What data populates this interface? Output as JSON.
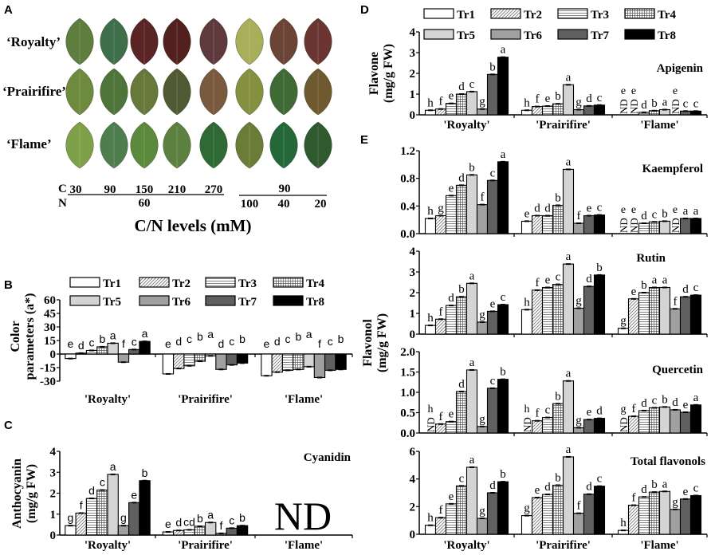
{
  "panel_a": {
    "letter": "A",
    "varieties": [
      "‘Royalty’",
      "‘Prairifire’",
      "‘Flame’"
    ],
    "leaf_colors": [
      [
        "#5f7d3e",
        "#3f6e4a",
        "#5a2426",
        "#52201f",
        "#5e3a3c",
        "#a8ae5a",
        "#6b4436",
        "#6a3530"
      ],
      [
        "#6e8a3c",
        "#4f7439",
        "#66793a",
        "#4f5a32",
        "#7a5a3e",
        "#859040",
        "#3f6a36",
        "#6e5a2e"
      ],
      [
        "#7da048",
        "#4f7e4e",
        "#5c8a3c",
        "#5b8040",
        "#2f6a34",
        "#6a7c36",
        "#24683a",
        "#2e5a2e"
      ]
    ],
    "c_label": "C",
    "n_label": "N",
    "c_values": [
      "30",
      "90",
      "150",
      "210",
      "270"
    ],
    "n_value": "60",
    "c_value_right": "90",
    "n_values_right": [
      "100",
      "40",
      "20"
    ],
    "axis_title": "C/N levels (mM)"
  },
  "legend": [
    "Tr1",
    "Tr2",
    "Tr3",
    "Tr4",
    "Tr5",
    "Tr6",
    "Tr7",
    "Tr8"
  ],
  "fills": [
    "#ffffff",
    "url(#p-diag)",
    "url(#p-horiz)",
    "url(#p-grid)",
    "#d4d4d4",
    "#a0a0a0",
    "#606060",
    "#000000"
  ],
  "groups": [
    "'Royalty'",
    "'Prairifire'",
    "'Flame'"
  ],
  "nd_label": "ND",
  "panels": {
    "B": {
      "letter": "B",
      "ylabel": [
        "Color",
        "parameters (a*)"
      ],
      "title": "",
      "ticks": [
        "60",
        "45",
        "30",
        "15",
        "0",
        "-15",
        "-30"
      ]
    },
    "C": {
      "letter": "C",
      "ylabel": [
        "Anthocyanin",
        "(mg/g FW)"
      ],
      "title": "Cyanidin",
      "ticks": [
        "4",
        "3",
        "2",
        "1",
        "0"
      ],
      "big_nd": "ND"
    },
    "D": {
      "letter": "D",
      "ylabel": [
        "Flavone",
        "(mg/g FW)"
      ],
      "title": "Apigenin",
      "ticks": [
        "4",
        "3",
        "2",
        "1",
        "0"
      ]
    },
    "E": {
      "letter": "E",
      "ylabel": [
        "Flavonol",
        "(mg/g FW)"
      ]
    },
    "K": {
      "title": "Kaempferol",
      "ticks": [
        "1.2",
        "0.8",
        "0.4",
        "0.0"
      ]
    },
    "R": {
      "title": "Rutin",
      "ticks": [
        "4",
        "3",
        "2",
        "1",
        "0"
      ]
    },
    "Q": {
      "title": "Quercetin",
      "ticks": [
        "2.0",
        "1.5",
        "1.0",
        "0.5",
        "0.0"
      ]
    },
    "T": {
      "title": "Total flavonols",
      "ticks": [
        "6",
        "4",
        "2",
        "0"
      ]
    }
  },
  "chart_data": [
    {
      "id": "B",
      "type": "bar",
      "title": "Color parameters (a*)",
      "ylabel": "Color parameters (a*)",
      "ylim": [
        -30,
        60
      ],
      "categories": [
        "'Royalty'",
        "'Prairifire'",
        "'Flame'"
      ],
      "series_names": [
        "Tr1",
        "Tr2",
        "Tr3",
        "Tr4",
        "Tr5",
        "Tr6",
        "Tr7",
        "Tr8"
      ],
      "values": [
        [
          -5,
          1,
          4,
          8,
          12,
          -9,
          5,
          14
        ],
        [
          -22,
          -16,
          -13,
          -8,
          -2,
          -17,
          -12,
          -10
        ],
        [
          -24,
          -20,
          -18,
          -17,
          -14,
          -26,
          -18,
          -17
        ]
      ],
      "letters": [
        [
          "e",
          "d",
          "c",
          "b",
          "a",
          "f",
          "c",
          "a"
        ],
        [
          "e",
          "d",
          "c",
          "b",
          "a",
          "d",
          "c",
          "b"
        ],
        [
          "e",
          "d",
          "c",
          "b",
          "a",
          "f",
          "c",
          "b"
        ]
      ]
    },
    {
      "id": "C",
      "type": "bar",
      "title": "Cyanidin",
      "ylabel": "Anthocyanin (mg/g FW)",
      "ylim": [
        0,
        4
      ],
      "categories": [
        "'Royalty'",
        "'Prairifire'",
        "'Flame'"
      ],
      "values": [
        [
          0.45,
          1.05,
          1.75,
          2.15,
          2.9,
          0.45,
          1.55,
          2.6
        ],
        [
          0.15,
          0.22,
          0.25,
          0.42,
          0.6,
          0.08,
          0.33,
          0.45
        ],
        null
      ],
      "letters": [
        [
          "g",
          "f",
          "d",
          "c",
          "a",
          "g",
          "e",
          "b"
        ],
        [
          "e",
          "d",
          "cd",
          "b",
          "a",
          "f",
          "c",
          "b"
        ],
        null
      ]
    },
    {
      "id": "D",
      "type": "bar",
      "title": "Apigenin",
      "ylabel": "Flavone (mg/g FW)",
      "ylim": [
        0,
        4
      ],
      "categories": [
        "'Royalty'",
        "'Prairifire'",
        "'Flame'"
      ],
      "values": [
        [
          0.22,
          0.28,
          0.55,
          1.0,
          1.12,
          0.28,
          1.95,
          2.78
        ],
        [
          0.22,
          0.4,
          0.42,
          0.53,
          1.45,
          0.25,
          0.43,
          0.47
        ],
        [
          null,
          null,
          0.12,
          0.2,
          0.25,
          null,
          0.18,
          0.18
        ]
      ],
      "letters": [
        [
          "h",
          "f",
          "e",
          "d",
          "c",
          "g",
          "b",
          "a"
        ],
        [
          "h",
          "f",
          "e",
          "b",
          "a",
          "g",
          "d",
          "c"
        ],
        [
          "e",
          "e",
          "d",
          "b",
          "a",
          "e",
          "c",
          "c"
        ]
      ]
    },
    {
      "id": "K",
      "type": "bar",
      "title": "Kaempferol",
      "ylabel": "Flavonol (mg/g FW)",
      "ylim": [
        0,
        1.2
      ],
      "categories": [
        "'Royalty'",
        "'Prairifire'",
        "'Flame'"
      ],
      "values": [
        [
          0.22,
          0.26,
          0.55,
          0.7,
          0.85,
          0.42,
          0.77,
          1.04
        ],
        [
          0.18,
          0.26,
          0.26,
          0.41,
          0.93,
          0.15,
          0.26,
          0.27
        ],
        [
          null,
          null,
          0.15,
          0.17,
          0.18,
          null,
          0.22,
          0.22
        ]
      ],
      "letters": [
        [
          "h",
          "g",
          "e",
          "d",
          "b",
          "f",
          "c",
          "a"
        ],
        [
          "e",
          "d",
          "d",
          "b",
          "a",
          "f",
          "e",
          "c"
        ],
        [
          "e",
          "e",
          "d",
          "c",
          "b",
          "e",
          "a",
          "a"
        ]
      ]
    },
    {
      "id": "R",
      "type": "bar",
      "title": "Rutin",
      "ylabel": "Flavonol (mg/g FW)",
      "ylim": [
        0,
        4
      ],
      "categories": [
        "'Royalty'",
        "'Prairifire'",
        "'Flame'"
      ],
      "values": [
        [
          0.42,
          0.72,
          1.38,
          1.8,
          2.45,
          0.58,
          1.1,
          1.42
        ],
        [
          1.18,
          2.12,
          2.25,
          2.4,
          3.38,
          1.25,
          2.3,
          2.85
        ],
        [
          0.28,
          1.7,
          2.0,
          2.25,
          2.25,
          1.22,
          1.8,
          1.88
        ]
      ],
      "letters": [
        [
          "h",
          "f",
          "d",
          "b",
          "a",
          "g",
          "e",
          "c"
        ],
        [
          "h",
          "f",
          "e",
          "c",
          "a",
          "g",
          "d",
          "b"
        ],
        [
          "g",
          "e",
          "b",
          "a",
          "a",
          "f",
          "d",
          "c"
        ]
      ]
    },
    {
      "id": "Q",
      "type": "bar",
      "title": "Quercetin",
      "ylabel": "Flavonol (mg/g FW)",
      "ylim": [
        0,
        2
      ],
      "categories": [
        "'Royalty'",
        "'Prairifire'",
        "'Flame'"
      ],
      "values": [
        [
          null,
          0.22,
          0.28,
          1.02,
          1.55,
          0.16,
          1.1,
          1.32
        ],
        [
          null,
          0.3,
          0.38,
          0.72,
          1.28,
          0.13,
          0.33,
          0.36
        ],
        [
          null,
          0.41,
          0.55,
          0.62,
          0.64,
          0.57,
          0.51,
          0.69
        ]
      ],
      "letters": [
        [
          "h",
          "f",
          "e",
          "d",
          "a",
          "g",
          "c",
          "b"
        ],
        [
          "h",
          "f",
          "c",
          "b",
          "a",
          "g",
          "e",
          "d"
        ],
        [
          "g",
          "f",
          "d",
          "c",
          "b",
          "d",
          "e",
          "a"
        ]
      ]
    },
    {
      "id": "T",
      "type": "bar",
      "title": "Total flavonols",
      "ylabel": "Flavonol (mg/g FW)",
      "ylim": [
        0,
        6
      ],
      "categories": [
        "'Royalty'",
        "'Prairifire'",
        "'Flame'"
      ],
      "values": [
        [
          0.65,
          1.2,
          2.2,
          3.5,
          4.85,
          1.15,
          3.0,
          3.8
        ],
        [
          1.35,
          2.65,
          2.88,
          3.55,
          5.6,
          1.52,
          2.9,
          3.48
        ],
        [
          0.28,
          2.1,
          2.7,
          3.05,
          3.1,
          1.8,
          2.55,
          2.8
        ]
      ],
      "letters": [
        [
          "h",
          "f",
          "e",
          "c",
          "a",
          "g",
          "d",
          "b"
        ],
        [
          "g",
          "e",
          "d",
          "b",
          "a",
          "f",
          "d",
          "c"
        ],
        [
          "h",
          "f",
          "d",
          "b",
          "a",
          "g",
          "e",
          "c"
        ]
      ]
    }
  ]
}
